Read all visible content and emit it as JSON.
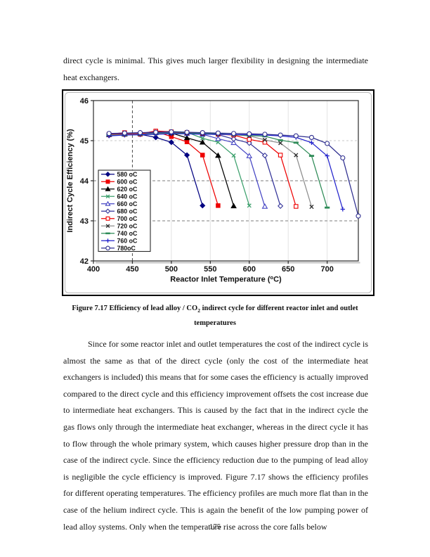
{
  "page": {
    "paragraph1": "direct cycle is minimal.  This gives much larger flexibility in designing the intermediate heat exchangers.",
    "caption": {
      "line1_pre_sub": "Figure 7.17 Efficiency of lead alloy / CO",
      "sub": "2",
      "line1_post_sub": " indirect cycle for different reactor inlet and outlet",
      "line2": "temperatures"
    },
    "paragraph2": "Since for some reactor inlet and outlet temperatures the cost of the indirect cycle is almost the same as that of the direct cycle (only the cost of the intermediate heat exchangers is included) this means that for some cases the efficiency is actually improved compared to the direct cycle and this efficiency improvement offsets the cost increase due to intermediate heat exchangers.  This is caused by the fact that in the indirect cycle the gas flows only through the intermediate heat exchanger, whereas in the direct cycle it has to flow through the whole primary system, which causes higher pressure drop than in the case of the indirect cycle.  Since the efficiency reduction due to the pumping of lead alloy is negligible the cycle efficiency is improved.  Figure 7.17 shows the efficiency profiles for different operating temperatures.  The efficiency profiles are much more flat than in the case of the helium indirect cycle.  This is again the benefit of the low pumping power of lead alloy systems.  Only when the temperature rise across the core falls below",
    "page_number": "175"
  },
  "chart_data": {
    "type": "line",
    "title": "",
    "ylabel": "Indirect Cycle Efficiency (%)",
    "xlabel_parts": {
      "pre": "Reactor Inlet Temperature (",
      "sup": "o",
      "post": "C)"
    },
    "xlim": [
      400,
      740
    ],
    "ylim": [
      42,
      46
    ],
    "x_ticks": [
      400,
      450,
      500,
      550,
      600,
      650,
      700
    ],
    "y_ticks": [
      42,
      43,
      44,
      45,
      46
    ],
    "grid": {
      "h_dashed_dark": [
        43,
        44
      ],
      "h_dashed_light": [
        45
      ],
      "v_dashed_dark": [
        450
      ],
      "v_light": [
        500,
        550,
        600,
        650,
        700
      ]
    },
    "legend_position": "inside-left",
    "x_start": 420,
    "x_step": 20,
    "series": [
      {
        "name": "580 oC",
        "color": "#000080",
        "marker": "diamond",
        "filled": true,
        "values": [
          45.13,
          45.15,
          45.16,
          45.08,
          44.96,
          44.64,
          43.38
        ]
      },
      {
        "name": "600 oC",
        "color": "#EE0000",
        "marker": "square",
        "filled": true,
        "values": [
          45.16,
          45.2,
          45.16,
          45.23,
          45.1,
          44.97,
          44.64,
          43.38
        ]
      },
      {
        "name": "620 oC",
        "color": "#000000",
        "marker": "triangle",
        "filled": true,
        "values": [
          45.15,
          45.17,
          45.19,
          45.21,
          45.19,
          45.07,
          44.96,
          44.63,
          43.37
        ]
      },
      {
        "name": "640 oC",
        "color": "#3CA06C",
        "marker": "x",
        "filled": false,
        "values": [
          45.14,
          45.16,
          45.19,
          45.22,
          45.23,
          45.21,
          45.06,
          44.96,
          44.63,
          43.38
        ]
      },
      {
        "name": "660 oC",
        "color": "#4444C4",
        "marker": "triangle",
        "filled": false,
        "values": [
          45.15,
          45.16,
          45.18,
          45.2,
          45.21,
          45.18,
          45.16,
          45.05,
          44.95,
          44.62,
          43.36
        ]
      },
      {
        "name": "680 oC",
        "color": "#333399",
        "marker": "diamond",
        "filled": false,
        "values": [
          45.16,
          45.17,
          45.18,
          45.19,
          45.2,
          45.18,
          45.17,
          45.15,
          45.04,
          44.94,
          44.63,
          43.37
        ]
      },
      {
        "name": "700 oC",
        "color": "#EE0000",
        "marker": "square",
        "filled": false,
        "values": [
          45.15,
          45.16,
          45.17,
          45.24,
          45.22,
          45.2,
          45.18,
          45.16,
          45.14,
          45.03,
          44.96,
          44.64,
          43.36
        ]
      },
      {
        "name": "720 oC",
        "color": "#2B2B2B",
        "line_color": "#8C8C8C",
        "marker": "x",
        "filled": false,
        "values": [
          45.14,
          45.15,
          45.16,
          45.18,
          45.19,
          45.18,
          45.17,
          45.16,
          45.15,
          45.12,
          45.02,
          44.94,
          44.64,
          43.35
        ]
      },
      {
        "name": "740 oC",
        "color": "#2E8B57",
        "marker": "dash",
        "filled": true,
        "values": [
          45.13,
          45.14,
          45.15,
          45.17,
          45.18,
          45.19,
          45.18,
          45.17,
          45.15,
          45.13,
          45.11,
          45.01,
          44.95,
          44.62,
          43.33
        ]
      },
      {
        "name": "760 oC",
        "color": "#2222CC",
        "marker": "plus",
        "filled": false,
        "values": [
          45.12,
          45.14,
          45.15,
          45.16,
          45.17,
          45.17,
          45.16,
          45.16,
          45.15,
          45.15,
          45.14,
          45.12,
          45.08,
          44.95,
          44.62,
          43.29
        ]
      },
      {
        "name": "780oC",
        "color": "#2E2E8F",
        "marker": "circle",
        "filled": false,
        "values": [
          45.18,
          45.19,
          45.2,
          45.21,
          45.22,
          45.21,
          45.2,
          45.19,
          45.18,
          45.17,
          45.16,
          45.14,
          45.12,
          45.08,
          44.93,
          44.57,
          43.12
        ]
      }
    ]
  }
}
